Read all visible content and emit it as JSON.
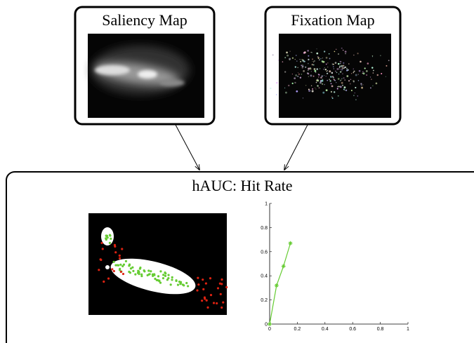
{
  "saliency_box": {
    "title": "Saliency Map"
  },
  "fixation_box": {
    "title": "Fixation Map"
  },
  "hauc_box": {
    "title": "hAUC: Hit Rate"
  },
  "chart_data": {
    "type": "line",
    "x": [
      0,
      0.05,
      0.1,
      0.15
    ],
    "series": [
      {
        "color": "#66cc33",
        "values": [
          0,
          0.32,
          0.48,
          0.67
        ]
      }
    ],
    "xlim": [
      0,
      1
    ],
    "ylim": [
      0,
      1
    ],
    "xticks": [
      0,
      0.2,
      0.4,
      0.6,
      0.8,
      1
    ],
    "yticks": [
      0,
      0.2,
      0.4,
      0.6,
      0.8,
      1
    ]
  }
}
